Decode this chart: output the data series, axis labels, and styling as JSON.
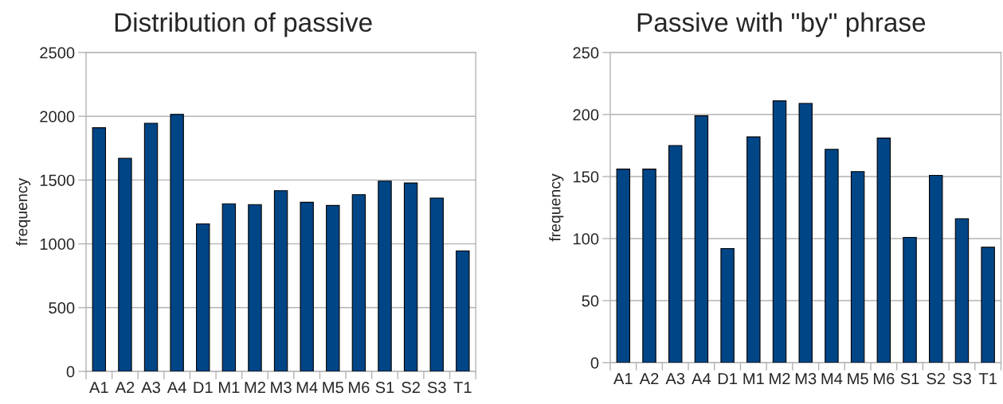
{
  "chart_data": [
    {
      "type": "bar",
      "title": "Distribution of passive",
      "ylabel": "frequency",
      "categories": [
        "A1",
        "A2",
        "A3",
        "A4",
        "D1",
        "M1",
        "M2",
        "M3",
        "M4",
        "M5",
        "M6",
        "S1",
        "S2",
        "S3",
        "T1"
      ],
      "values": [
        1910,
        1670,
        1945,
        2015,
        1157,
        1314,
        1308,
        1417,
        1326,
        1301,
        1386,
        1492,
        1477,
        1359,
        945
      ],
      "color": "#004586",
      "ylim": [
        0,
        2500
      ],
      "yticks": [
        0,
        500,
        1000,
        1500,
        2000,
        2500
      ],
      "grid": "y"
    },
    {
      "type": "bar",
      "title": "Passive with \"by\" phrase",
      "ylabel": "frequency",
      "categories": [
        "A1",
        "A2",
        "A3",
        "A4",
        "D1",
        "M1",
        "M2",
        "M3",
        "M4",
        "M5",
        "M6",
        "S1",
        "S2",
        "S3",
        "T1"
      ],
      "values": [
        156,
        156,
        175,
        199,
        92,
        182,
        211,
        209,
        172,
        154,
        181,
        101,
        151,
        116,
        93
      ],
      "color": "#004586",
      "ylim": [
        0,
        250
      ],
      "yticks": [
        0,
        50,
        100,
        150,
        200,
        250
      ],
      "grid": "y"
    }
  ]
}
